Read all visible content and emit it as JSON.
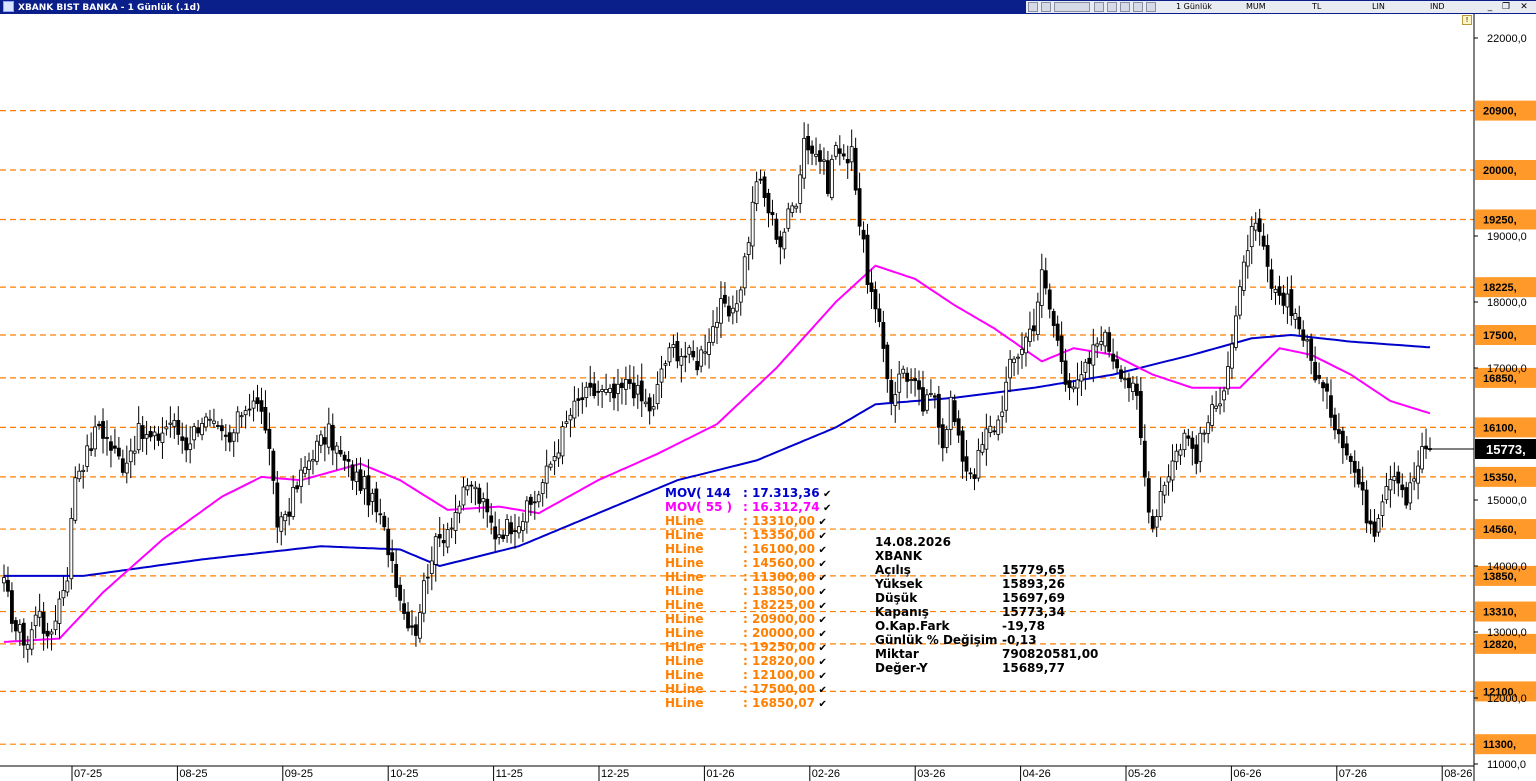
{
  "window": {
    "title": "XBANK BIST BANKA - 1 Günlük (.1d)",
    "toolbar": {
      "period": "1 Günlük",
      "type": "MUM",
      "currency": "TL",
      "scale": "LIN",
      "mode": "IND"
    },
    "controls": {
      "minimize": "_",
      "restore": "❐",
      "close": "✕"
    }
  },
  "colors": {
    "mov144": "#0000cc",
    "mov55": "#ff00ff",
    "hline": "#ff8000",
    "label_bg": "#ff9a2a",
    "candle": "#000000"
  },
  "chart_data": {
    "type": "candlestick",
    "ylim": [
      10600,
      22600
    ],
    "x_ticks": [
      "07-25",
      "08-25",
      "09-25",
      "10-25",
      "11-25",
      "12-25",
      "01-26",
      "02-26",
      "03-26",
      "04-26",
      "05-26",
      "06-26",
      "07-26",
      "08-26"
    ],
    "y_ticks": [
      {
        "label": "22000,0",
        "value": 22000
      },
      {
        "label": "19000,0",
        "value": 19000
      },
      {
        "label": "18000,0",
        "value": 18000
      },
      {
        "label": "17000,0",
        "value": 17000
      },
      {
        "label": "15000,0",
        "value": 15000
      },
      {
        "label": "14000,0",
        "value": 14000
      },
      {
        "label": "13000,0",
        "value": 13000
      },
      {
        "label": "12000,0",
        "value": 12000
      },
      {
        "label": "11000,0",
        "value": 11000
      }
    ],
    "hlines": [
      {
        "value": 20900,
        "label": "20900,"
      },
      {
        "value": 20000,
        "label": "20000,"
      },
      {
        "value": 19250,
        "label": "19250,"
      },
      {
        "value": 18225,
        "label": "18225,"
      },
      {
        "value": 17500,
        "label": "17500,"
      },
      {
        "value": 16850,
        "label": "16850,"
      },
      {
        "value": 16100,
        "label": "16100,"
      },
      {
        "value": 15350,
        "label": "15350,"
      },
      {
        "value": 14560,
        "label": "14560,"
      },
      {
        "value": 13850,
        "label": "13850,"
      },
      {
        "value": 13310,
        "label": "13310,"
      },
      {
        "value": 12820,
        "label": "12820,"
      },
      {
        "value": 12100,
        "label": "12100,"
      },
      {
        "value": 11300,
        "label": "11300,"
      }
    ],
    "last_price": {
      "value": 15773,
      "label": "15773,"
    },
    "close_anchors": [
      [
        0,
        13700
      ],
      [
        3,
        13050
      ],
      [
        6,
        12850
      ],
      [
        9,
        13400
      ],
      [
        11,
        12800
      ],
      [
        14,
        13500
      ],
      [
        16,
        13900
      ],
      [
        18,
        15400
      ],
      [
        21,
        15700
      ],
      [
        24,
        16150
      ],
      [
        27,
        15800
      ],
      [
        30,
        15550
      ],
      [
        34,
        16000
      ],
      [
        38,
        15900
      ],
      [
        42,
        16200
      ],
      [
        46,
        15850
      ],
      [
        50,
        16250
      ],
      [
        54,
        16000
      ],
      [
        57,
        15850
      ],
      [
        60,
        16350
      ],
      [
        63,
        16550
      ],
      [
        66,
        16150
      ],
      [
        69,
        14650
      ],
      [
        72,
        14900
      ],
      [
        75,
        15350
      ],
      [
        78,
        15750
      ],
      [
        82,
        16000
      ],
      [
        85,
        15650
      ],
      [
        88,
        15400
      ],
      [
        91,
        15200
      ],
      [
        95,
        14700
      ],
      [
        98,
        14100
      ],
      [
        101,
        13300
      ],
      [
        104,
        13050
      ],
      [
        106,
        13700
      ],
      [
        108,
        14200
      ],
      [
        112,
        14600
      ],
      [
        115,
        14950
      ],
      [
        118,
        15250
      ],
      [
        121,
        14900
      ],
      [
        124,
        14500
      ],
      [
        127,
        14600
      ],
      [
        131,
        14750
      ],
      [
        134,
        15000
      ],
      [
        137,
        15400
      ],
      [
        140,
        15850
      ],
      [
        143,
        16300
      ],
      [
        146,
        16550
      ],
      [
        150,
        16650
      ],
      [
        154,
        16550
      ],
      [
        158,
        16800
      ],
      [
        161,
        16500
      ],
      [
        164,
        16350
      ],
      [
        166,
        17000
      ],
      [
        169,
        17300
      ],
      [
        172,
        17200
      ],
      [
        175,
        17100
      ],
      [
        178,
        17500
      ],
      [
        181,
        17900
      ],
      [
        184,
        17750
      ],
      [
        186,
        18300
      ],
      [
        188,
        19000
      ],
      [
        190,
        19900
      ],
      [
        193,
        19400
      ],
      [
        196,
        18900
      ],
      [
        198,
        19300
      ],
      [
        200,
        19600
      ],
      [
        202,
        20500
      ],
      [
        204,
        20300
      ],
      [
        206,
        20200
      ],
      [
        208,
        19800
      ],
      [
        210,
        20400
      ],
      [
        212,
        20100
      ],
      [
        214,
        20400
      ],
      [
        216,
        19200
      ],
      [
        218,
        18400
      ],
      [
        220,
        17800
      ],
      [
        222,
        17300
      ],
      [
        224,
        16550
      ],
      [
        227,
        17000
      ],
      [
        230,
        16700
      ],
      [
        232,
        16400
      ],
      [
        235,
        16600
      ],
      [
        237,
        15900
      ],
      [
        239,
        16500
      ],
      [
        241,
        15850
      ],
      [
        243,
        15500
      ],
      [
        245,
        15450
      ],
      [
        248,
        16000
      ],
      [
        251,
        16200
      ],
      [
        254,
        17000
      ],
      [
        257,
        17350
      ],
      [
        260,
        17700
      ],
      [
        262,
        18400
      ],
      [
        264,
        17900
      ],
      [
        266,
        17400
      ],
      [
        268,
        16900
      ],
      [
        271,
        16700
      ],
      [
        274,
        17100
      ],
      [
        277,
        17550
      ],
      [
        280,
        17200
      ],
      [
        283,
        16900
      ],
      [
        286,
        16500
      ],
      [
        288,
        15350
      ],
      [
        290,
        14600
      ],
      [
        292,
        15150
      ],
      [
        295,
        15600
      ],
      [
        298,
        16000
      ],
      [
        301,
        15700
      ],
      [
        304,
        16200
      ],
      [
        306,
        16400
      ],
      [
        308,
        16800
      ],
      [
        310,
        17400
      ],
      [
        312,
        18100
      ],
      [
        314,
        18900
      ],
      [
        316,
        19100
      ],
      [
        318,
        18750
      ],
      [
        320,
        18200
      ],
      [
        322,
        17950
      ],
      [
        324,
        18100
      ],
      [
        326,
        17800
      ],
      [
        328,
        17500
      ],
      [
        330,
        17100
      ],
      [
        332,
        16800
      ],
      [
        334,
        16500
      ],
      [
        336,
        16200
      ],
      [
        338,
        15950
      ],
      [
        340,
        15600
      ],
      [
        342,
        15250
      ],
      [
        344,
        14800
      ],
      [
        346,
        14600
      ],
      [
        348,
        15100
      ],
      [
        350,
        15450
      ],
      [
        352,
        15400
      ],
      [
        354,
        15000
      ],
      [
        356,
        15350
      ],
      [
        358,
        15700
      ],
      [
        360,
        15773
      ]
    ],
    "series": [
      {
        "name": "MOV( 144 : 17.313,36",
        "anchors": [
          [
            0,
            13850
          ],
          [
            20,
            13850
          ],
          [
            50,
            14100
          ],
          [
            80,
            14300
          ],
          [
            100,
            14250
          ],
          [
            110,
            14000
          ],
          [
            130,
            14300
          ],
          [
            150,
            14800
          ],
          [
            170,
            15300
          ],
          [
            190,
            15600
          ],
          [
            210,
            16100
          ],
          [
            220,
            16450
          ],
          [
            240,
            16550
          ],
          [
            260,
            16700
          ],
          [
            280,
            16900
          ],
          [
            300,
            17200
          ],
          [
            315,
            17450
          ],
          [
            325,
            17500
          ],
          [
            340,
            17400
          ],
          [
            360,
            17313
          ]
        ]
      },
      {
        "name": "MOV( 55 ) : 16.312,74",
        "anchors": [
          [
            0,
            12850
          ],
          [
            14,
            12900
          ],
          [
            25,
            13600
          ],
          [
            40,
            14400
          ],
          [
            55,
            15050
          ],
          [
            65,
            15350
          ],
          [
            75,
            15300
          ],
          [
            90,
            15550
          ],
          [
            100,
            15300
          ],
          [
            112,
            14850
          ],
          [
            125,
            14900
          ],
          [
            135,
            14800
          ],
          [
            150,
            15300
          ],
          [
            165,
            15700
          ],
          [
            180,
            16150
          ],
          [
            195,
            17000
          ],
          [
            210,
            18000
          ],
          [
            220,
            18550
          ],
          [
            230,
            18350
          ],
          [
            240,
            17950
          ],
          [
            250,
            17600
          ],
          [
            262,
            17100
          ],
          [
            270,
            17300
          ],
          [
            280,
            17200
          ],
          [
            290,
            16900
          ],
          [
            300,
            16700
          ],
          [
            312,
            16700
          ],
          [
            322,
            17300
          ],
          [
            330,
            17200
          ],
          [
            340,
            16900
          ],
          [
            350,
            16500
          ],
          [
            360,
            16313
          ]
        ]
      }
    ]
  },
  "legend": [
    {
      "name": "MOV( 144",
      "value": ": 17.313,36",
      "color": "#0000cc"
    },
    {
      "name": "MOV( 55 )",
      "value": ": 16.312,74",
      "color": "#ff00ff"
    },
    {
      "name": "HLine",
      "value": ": 13310,00",
      "color": "#ff8000"
    },
    {
      "name": "HLine",
      "value": ": 15350,00",
      "color": "#ff8000"
    },
    {
      "name": "HLine",
      "value": ": 16100,00",
      "color": "#ff8000"
    },
    {
      "name": "HLine",
      "value": ": 14560,00",
      "color": "#ff8000"
    },
    {
      "name": "HLine",
      "value": ": 11300,00",
      "color": "#ff8000"
    },
    {
      "name": "HLine",
      "value": ": 13850,00",
      "color": "#ff8000"
    },
    {
      "name": "HLine",
      "value": ": 18225,00",
      "color": "#ff8000"
    },
    {
      "name": "HLine",
      "value": ": 20900,00",
      "color": "#ff8000"
    },
    {
      "name": "HLine",
      "value": ": 20000,00",
      "color": "#ff8000"
    },
    {
      "name": "HLine",
      "value": ": 19250,00",
      "color": "#ff8000"
    },
    {
      "name": "HLine",
      "value": ": 12820,00",
      "color": "#ff8000"
    },
    {
      "name": "HLine",
      "value": ": 12100,00",
      "color": "#ff8000"
    },
    {
      "name": "HLine",
      "value": ": 17500,00",
      "color": "#ff8000"
    },
    {
      "name": "HLine",
      "value": ": 16850,07",
      "color": "#ff8000"
    }
  ],
  "info_panel": {
    "date": "14.08.2026",
    "symbol": "XBANK",
    "rows": [
      {
        "label": "Açılış",
        "value": "15779,65"
      },
      {
        "label": "Yüksek",
        "value": "15893,26"
      },
      {
        "label": "Düşük",
        "value": "15697,69"
      },
      {
        "label": "Kapanış",
        "value": "15773,34"
      },
      {
        "label": "O.Kap.Fark",
        "value": "-19,78"
      },
      {
        "label": "Günlük % Değişim",
        "value": "-0,13"
      },
      {
        "label": "Miktar",
        "value": "790820581,00"
      },
      {
        "label": "Değer-Y",
        "value": "15689,77"
      }
    ]
  }
}
